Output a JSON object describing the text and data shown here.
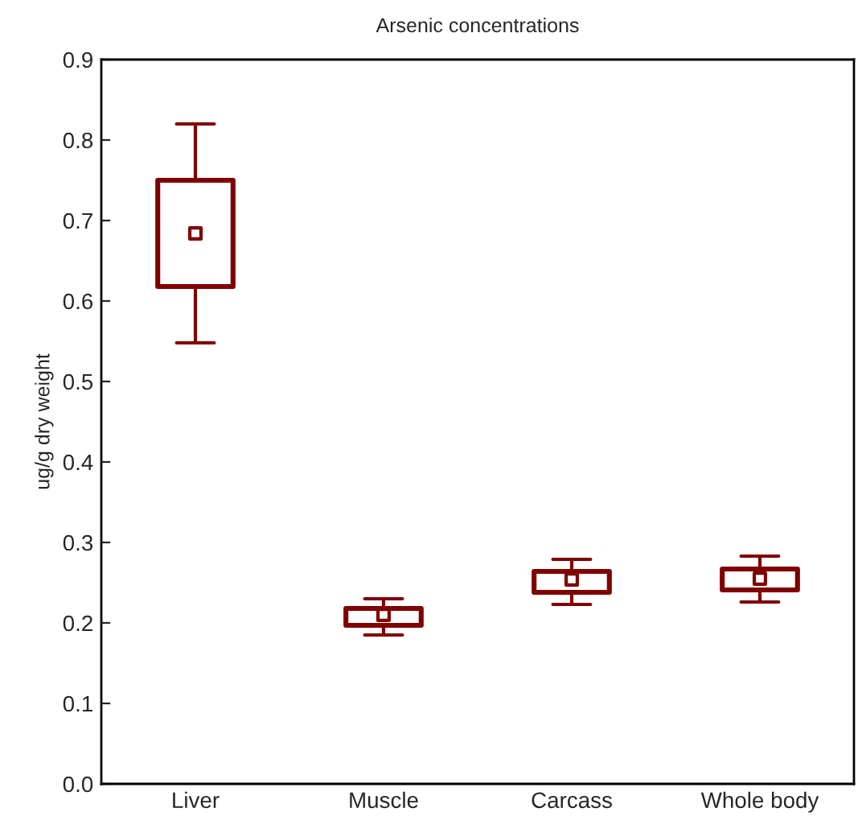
{
  "chart_data": {
    "type": "box",
    "title": "Arsenic concentrations",
    "ylabel": "ug/g dry weight",
    "categories": [
      "Liver",
      "Muscle",
      "Carcass",
      "Whole body"
    ],
    "color": "#800000",
    "boxes": [
      {
        "low": 0.548,
        "q1": 0.618,
        "median": 0.684,
        "q3": 0.75,
        "high": 0.82
      },
      {
        "low": 0.185,
        "q1": 0.197,
        "median": 0.21,
        "q3": 0.218,
        "high": 0.23
      },
      {
        "low": 0.223,
        "q1": 0.238,
        "median": 0.254,
        "q3": 0.264,
        "high": 0.279
      },
      {
        "low": 0.226,
        "q1": 0.241,
        "median": 0.255,
        "q3": 0.267,
        "high": 0.283
      }
    ],
    "ylim": [
      0,
      0.9
    ],
    "yticks": [
      {
        "value": 0,
        "label": "0.0"
      },
      0.1,
      0.2,
      0.3,
      0.4,
      0.5,
      0.6,
      0.7,
      0.8,
      0.9
    ],
    "grid": false,
    "marker": "square"
  }
}
